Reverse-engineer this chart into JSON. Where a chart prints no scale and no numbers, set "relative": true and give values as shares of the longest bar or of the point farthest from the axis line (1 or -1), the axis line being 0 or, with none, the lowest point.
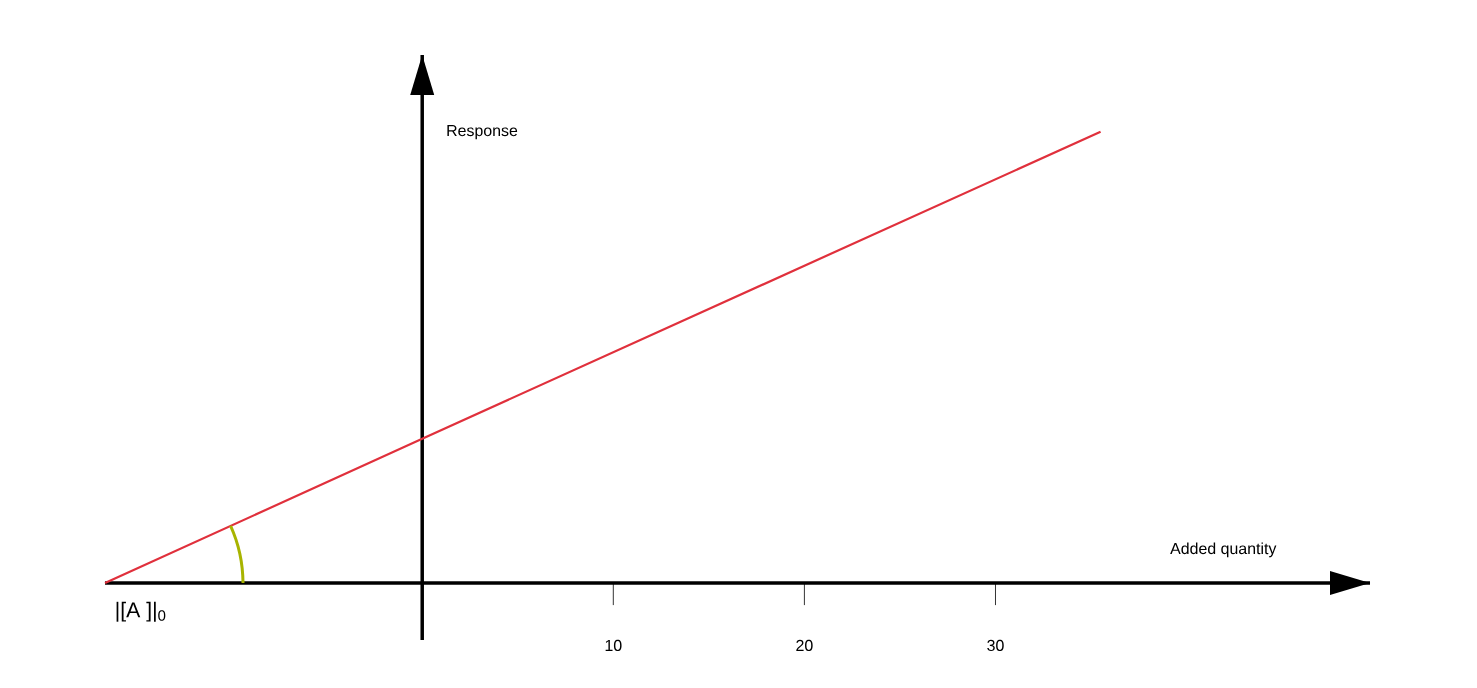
{
  "chart_data": {
    "type": "line",
    "relative": true,
    "xlabel": "Added quantity",
    "ylabel": "Response",
    "x": [
      -16.6,
      0,
      35.5
    ],
    "series": [
      {
        "color": "#e0303c",
        "values": [
          0,
          0.32,
          1
        ]
      }
    ],
    "xlim": [
      -16.6,
      49.6
    ],
    "xticks": [
      10,
      20,
      30
    ],
    "line_style": "solid",
    "annotations": [
      {
        "text": "|[A ]|$_{0}$",
        "x": -16.6,
        "y": 0
      }
    ]
  }
}
